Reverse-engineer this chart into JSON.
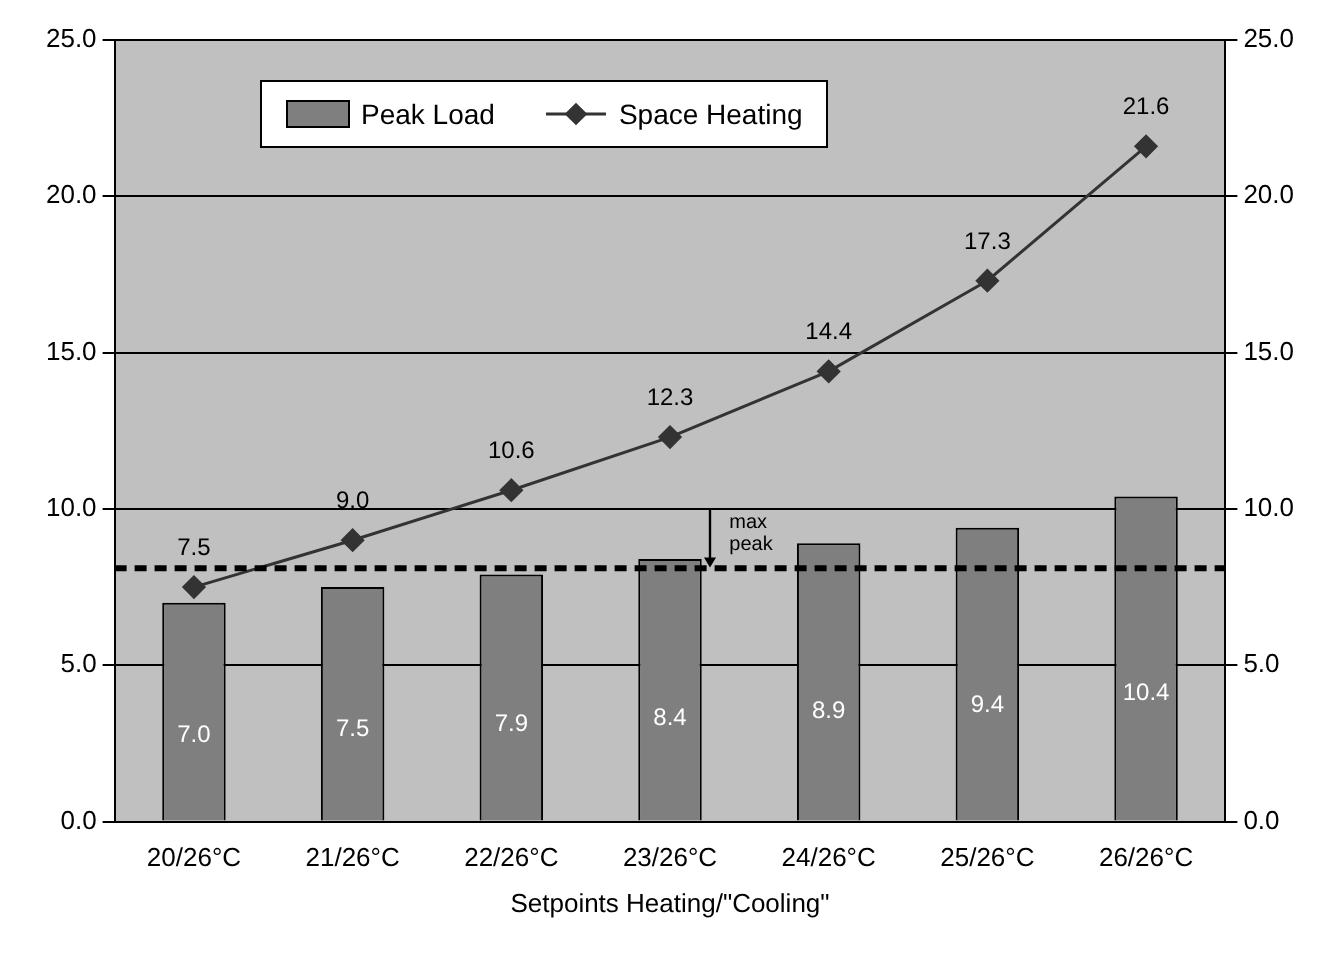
{
  "chart_data": {
    "type": "bar",
    "xlabel": "Setpoints Heating/\"Cooling\"",
    "categories": [
      "20/26°C",
      "21/26°C",
      "22/26°C",
      "23/26°C",
      "24/26°C",
      "25/26°C",
      "26/26°C"
    ],
    "series": [
      {
        "name": "Peak Load",
        "color": "#7f7f7f",
        "values": [
          7.0,
          7.5,
          7.9,
          8.4,
          8.9,
          9.4,
          10.4
        ],
        "value_labels": [
          "7.0",
          "7.5",
          "7.9",
          "8.4",
          "8.9",
          "9.4",
          "10.4"
        ]
      },
      {
        "name": "Space Heating",
        "type": "line",
        "color": "#333333",
        "values": [
          7.5,
          9.0,
          10.6,
          12.3,
          14.4,
          17.3,
          21.6
        ],
        "value_labels": [
          "7.5",
          "9.0",
          "10.6",
          "12.3",
          "14.4",
          "17.3",
          "21.6"
        ],
        "marker": "diamond"
      }
    ],
    "ylim": [
      0,
      25
    ],
    "yticks": [
      {
        "value": 0,
        "label": "0.0"
      },
      {
        "value": 5,
        "label": "5.0"
      },
      {
        "value": 10,
        "label": "10.0"
      },
      {
        "value": 15,
        "label": "15.0"
      },
      {
        "value": 20,
        "label": "20.0"
      },
      {
        "value": 25,
        "label": "25.0"
      }
    ],
    "y2lim": [
      0,
      25
    ],
    "y2ticks": [
      {
        "value": 0,
        "label": "0.0"
      },
      {
        "value": 5,
        "label": "5.0"
      },
      {
        "value": 10,
        "label": "10.0"
      },
      {
        "value": 15,
        "label": "15.0"
      },
      {
        "value": 20,
        "label": "20.0"
      },
      {
        "value": 25,
        "label": "25.0"
      }
    ],
    "ref_lines": [
      {
        "axis": "y",
        "value": 8.1,
        "line_style": "dashed",
        "color": "#000000"
      }
    ],
    "annotations": [
      "max peak"
    ],
    "grid": "y",
    "legend": "top"
  }
}
